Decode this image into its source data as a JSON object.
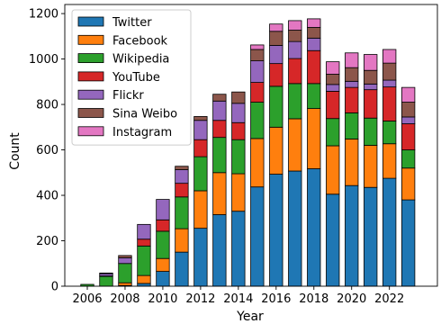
{
  "chart_data": {
    "type": "bar",
    "stacked": true,
    "xlabel": "Year",
    "ylabel": "Count",
    "ylim": [
      0,
      1240
    ],
    "yticks": [
      0,
      200,
      400,
      600,
      800,
      1000,
      1200
    ],
    "xticks": [
      "2006",
      "2008",
      "2010",
      "2012",
      "2014",
      "2016",
      "2018",
      "2020",
      "2022"
    ],
    "legend_position": "top-left",
    "categories": [
      "2006",
      "2007",
      "2008",
      "2009",
      "2010",
      "2011",
      "2012",
      "2013",
      "2014",
      "2015",
      "2016",
      "2017",
      "2018",
      "2019",
      "2020",
      "2021",
      "2022",
      "2023"
    ],
    "series": [
      {
        "name": "Twitter",
        "color": "#1f77b4",
        "values": [
          0,
          0,
          3,
          12,
          65,
          150,
          255,
          315,
          330,
          437,
          493,
          507,
          517,
          405,
          443,
          435,
          475,
          380
        ]
      },
      {
        "name": "Facebook",
        "color": "#ff7f0e",
        "values": [
          0,
          0,
          12,
          35,
          57,
          103,
          165,
          185,
          165,
          213,
          207,
          230,
          265,
          213,
          205,
          185,
          152,
          140
        ]
      },
      {
        "name": "Wikipedia",
        "color": "#2ca02c",
        "values": [
          8,
          43,
          85,
          130,
          120,
          140,
          150,
          155,
          150,
          160,
          180,
          155,
          110,
          120,
          115,
          120,
          100,
          80
        ]
      },
      {
        "name": "YouTube",
        "color": "#d62728",
        "values": [
          0,
          2,
          0,
          30,
          50,
          60,
          75,
          75,
          75,
          87,
          100,
          110,
          145,
          120,
          112,
          125,
          150,
          115
        ]
      },
      {
        "name": "Flickr",
        "color": "#9467bd",
        "values": [
          0,
          10,
          25,
          65,
          90,
          60,
          85,
          85,
          85,
          95,
          80,
          75,
          55,
          30,
          27,
          25,
          30,
          30
        ]
      },
      {
        "name": "Sina Weibo",
        "color": "#8c564b",
        "values": [
          0,
          3,
          10,
          0,
          0,
          15,
          17,
          30,
          50,
          50,
          62,
          50,
          47,
          45,
          60,
          60,
          75,
          65
        ]
      },
      {
        "name": "Instagram",
        "color": "#e377c2",
        "values": [
          0,
          0,
          0,
          0,
          0,
          0,
          0,
          0,
          0,
          20,
          32,
          42,
          38,
          55,
          65,
          70,
          60,
          65
        ]
      }
    ]
  }
}
